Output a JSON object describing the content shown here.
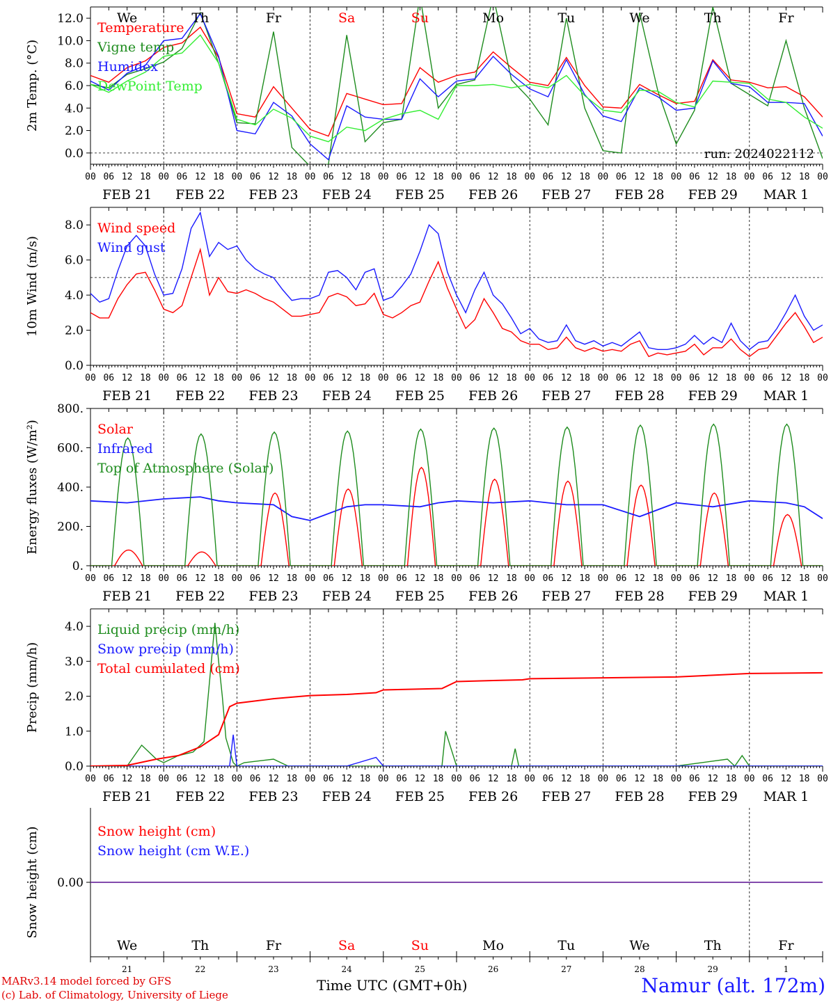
{
  "days": [
    "We",
    "Th",
    "Fr",
    "Sa",
    "Su",
    "Mo",
    "Tu",
    "We",
    "Th",
    "Fr"
  ],
  "weekend_days": [
    "Sa",
    "Su"
  ],
  "dates": [
    "FEB 21",
    "FEB 22",
    "FEB 23",
    "FEB 24",
    "FEB 25",
    "FEB 26",
    "FEB 27",
    "FEB 28",
    "FEB 29",
    "MAR  1"
  ],
  "day_numbers": [
    "21",
    "22",
    "23",
    "24",
    "25",
    "26",
    "27",
    "28",
    "29",
    "1"
  ],
  "hour_labels": [
    "00",
    "06",
    "12",
    "18"
  ],
  "end_hour_label": "00",
  "run_label": "run: 2024022112",
  "footer": {
    "model_line1": "MARv3.14 model forced by GFS",
    "model_line2": "(c) Lab. of Climatology, University of Liege",
    "time_axis_label": "Time UTC (GMT+0h)",
    "location": "Namur (alt. 172m)"
  },
  "colors": {
    "red": "#ff0000",
    "green": "#1e8c1e",
    "blue": "#1a1aff",
    "lightgreen": "#33ee33",
    "purple": "#7030a0"
  },
  "chart_data": [
    {
      "type": "line",
      "ylabel": "2m Temp. (°C)",
      "ylim": [
        -1.0,
        13.0
      ],
      "yticks": [
        "0.0",
        "2.0",
        "4.0",
        "6.0",
        "8.0",
        "10.0",
        "12.0"
      ],
      "yticks_values": [
        0,
        2,
        4,
        6,
        8,
        10,
        12
      ],
      "x_unit": "days since FEB 21 00 UTC",
      "legend_placement": "left",
      "series": [
        {
          "name": "Temperature",
          "color": "red",
          "x": [
            0,
            0.25,
            0.5,
            0.75,
            1,
            1.25,
            1.5,
            1.75,
            2,
            2.25,
            2.5,
            2.75,
            3,
            3.25,
            3.5,
            3.75,
            4,
            4.25,
            4.5,
            4.75,
            5,
            5.25,
            5.5,
            5.75,
            6,
            6.25,
            6.5,
            6.75,
            7,
            7.25,
            7.5,
            7.75,
            8,
            8.25,
            8.5,
            8.75,
            9,
            9.25,
            9.5,
            9.75,
            10
          ],
          "values": [
            6.9,
            6.3,
            7.6,
            8.2,
            9.4,
            9.8,
            11.2,
            8.5,
            3.5,
            3.2,
            5.9,
            4.0,
            2.1,
            1.5,
            5.3,
            4.8,
            4.3,
            4.4,
            7.6,
            6.3,
            6.9,
            7.2,
            9.0,
            7.6,
            6.3,
            6.0,
            8.5,
            6.0,
            4.1,
            4.0,
            6.1,
            5.2,
            4.4,
            4.6,
            8.3,
            6.5,
            6.3,
            5.8,
            5.9,
            5.0,
            3.2
          ]
        },
        {
          "name": "Vigne temp",
          "color": "green",
          "x": [
            0,
            0.25,
            0.5,
            0.75,
            1,
            1.25,
            1.5,
            1.75,
            2,
            2.25,
            2.5,
            2.75,
            3,
            3.25,
            3.5,
            3.75,
            4,
            4.25,
            4.5,
            4.75,
            5,
            5.25,
            5.5,
            5.75,
            6,
            6.25,
            6.5,
            6.75,
            7,
            7.25,
            7.5,
            7.75,
            8,
            8.25,
            8.5,
            8.75,
            9,
            9.25,
            9.5,
            9.75,
            10
          ],
          "values": [
            6.1,
            5.8,
            7.0,
            7.5,
            8.1,
            9.3,
            12.5,
            8.0,
            2.7,
            2.6,
            10.8,
            0.5,
            -1.2,
            -1.0,
            10.5,
            1.0,
            2.7,
            3.0,
            14.0,
            4.0,
            6.1,
            6.5,
            14.0,
            6.5,
            4.8,
            2.5,
            12.0,
            4.0,
            0.2,
            0.0,
            12.5,
            5.5,
            0.8,
            3.8,
            13.0,
            6.2,
            5.2,
            4.2,
            10.0,
            4.0,
            -0.5
          ]
        },
        {
          "name": "Humidex",
          "color": "blue",
          "x": [
            0,
            0.25,
            0.5,
            0.75,
            1,
            1.25,
            1.5,
            1.75,
            2,
            2.25,
            2.5,
            2.75,
            3,
            3.25,
            3.5,
            3.75,
            4,
            4.25,
            4.5,
            4.75,
            5,
            5.25,
            5.5,
            5.75,
            6,
            6.25,
            6.5,
            6.75,
            7,
            7.25,
            7.5,
            7.75,
            8,
            8.25,
            8.5,
            8.75,
            9,
            9.25,
            9.5,
            9.75,
            10
          ],
          "values": [
            6.4,
            5.6,
            7.1,
            7.8,
            10.0,
            10.2,
            12.4,
            8.6,
            2.0,
            1.7,
            4.5,
            3.3,
            0.8,
            -0.6,
            4.2,
            3.2,
            3.0,
            3.0,
            6.6,
            5.0,
            6.4,
            6.6,
            8.6,
            7.0,
            5.7,
            5.0,
            8.3,
            5.2,
            3.3,
            2.8,
            5.8,
            5.0,
            3.8,
            4.0,
            8.2,
            6.2,
            5.9,
            4.5,
            4.5,
            4.4,
            1.5
          ]
        },
        {
          "name": "DewPoint Temp",
          "color": "lightgreen",
          "x": [
            0,
            0.25,
            0.5,
            0.75,
            1,
            1.25,
            1.5,
            1.75,
            2,
            2.25,
            2.5,
            2.75,
            3,
            3.25,
            3.5,
            3.75,
            4,
            4.25,
            4.5,
            4.75,
            5,
            5.25,
            5.5,
            5.75,
            6,
            6.25,
            6.5,
            6.75,
            7,
            7.25,
            7.5,
            7.75,
            8,
            8.25,
            8.5,
            8.75,
            9,
            9.25,
            9.5,
            9.75,
            10
          ],
          "values": [
            6.1,
            5.4,
            6.4,
            7.2,
            8.6,
            8.9,
            10.5,
            8.0,
            3.0,
            2.5,
            3.9,
            3.1,
            1.5,
            1.0,
            2.3,
            2.0,
            3.0,
            3.5,
            3.8,
            3.0,
            6.0,
            6.0,
            6.1,
            5.8,
            6.1,
            5.8,
            6.9,
            5.1,
            3.8,
            3.6,
            5.6,
            5.5,
            4.5,
            4.1,
            6.4,
            6.3,
            6.2,
            4.8,
            4.5,
            3.2,
            2.2
          ]
        }
      ]
    },
    {
      "type": "line",
      "ylabel": "10m Wind (m/s)",
      "ylim": [
        0,
        9.0
      ],
      "yticks": [
        "0.0",
        "2.0",
        "4.0",
        "6.0",
        "8.0"
      ],
      "yticks_values": [
        0,
        2,
        4,
        6,
        8
      ],
      "reference_line": 5.0,
      "x_unit": "days since FEB 21 00 UTC",
      "legend_placement": "left",
      "series": [
        {
          "name": "Wind speed",
          "color": "red",
          "x": [
            0,
            0.125,
            0.25,
            0.375,
            0.5,
            0.625,
            0.75,
            0.875,
            1,
            1.125,
            1.25,
            1.375,
            1.5,
            1.625,
            1.75,
            1.875,
            2,
            2.125,
            2.25,
            2.375,
            2.5,
            2.625,
            2.75,
            2.875,
            3,
            3.125,
            3.25,
            3.375,
            3.5,
            3.625,
            3.75,
            3.875,
            4,
            4.125,
            4.25,
            4.375,
            4.5,
            4.625,
            4.75,
            4.875,
            5,
            5.125,
            5.25,
            5.375,
            5.5,
            5.625,
            5.75,
            5.875,
            6,
            6.125,
            6.25,
            6.375,
            6.5,
            6.625,
            6.75,
            6.875,
            7,
            7.125,
            7.25,
            7.375,
            7.5,
            7.625,
            7.75,
            7.875,
            8,
            8.125,
            8.25,
            8.375,
            8.5,
            8.625,
            8.75,
            8.875,
            9,
            9.125,
            9.25,
            9.375,
            9.5,
            9.625,
            9.75,
            9.875,
            10
          ],
          "values": [
            3.0,
            2.7,
            2.7,
            3.8,
            4.6,
            5.2,
            5.3,
            4.3,
            3.2,
            3.0,
            3.4,
            5.0,
            6.6,
            4.0,
            5.0,
            4.2,
            4.1,
            4.3,
            4.1,
            3.8,
            3.6,
            3.2,
            2.8,
            2.8,
            2.9,
            3.0,
            3.9,
            4.1,
            3.9,
            3.4,
            3.5,
            4.1,
            2.9,
            2.7,
            3.0,
            3.4,
            3.6,
            4.8,
            5.9,
            4.4,
            3.2,
            2.1,
            2.6,
            3.8,
            3.0,
            2.1,
            1.9,
            1.4,
            1.2,
            1.2,
            0.9,
            1.0,
            1.6,
            1.0,
            0.8,
            1.0,
            0.8,
            0.9,
            0.8,
            1.2,
            1.4,
            0.5,
            0.7,
            0.6,
            0.7,
            0.8,
            1.2,
            0.6,
            1.0,
            1.0,
            1.5,
            0.9,
            0.5,
            0.9,
            1.0,
            1.7,
            2.4,
            3.0,
            2.2,
            1.3,
            1.6
          ]
        },
        {
          "name": "Wind gust",
          "color": "blue",
          "x": [
            0,
            0.125,
            0.25,
            0.375,
            0.5,
            0.625,
            0.75,
            0.875,
            1,
            1.125,
            1.25,
            1.375,
            1.5,
            1.625,
            1.75,
            1.875,
            2,
            2.125,
            2.25,
            2.375,
            2.5,
            2.625,
            2.75,
            2.875,
            3,
            3.125,
            3.25,
            3.375,
            3.5,
            3.625,
            3.75,
            3.875,
            4,
            4.125,
            4.25,
            4.375,
            4.5,
            4.625,
            4.75,
            4.875,
            5,
            5.125,
            5.25,
            5.375,
            5.5,
            5.625,
            5.75,
            5.875,
            6,
            6.125,
            6.25,
            6.375,
            6.5,
            6.625,
            6.75,
            6.875,
            7,
            7.125,
            7.25,
            7.375,
            7.5,
            7.625,
            7.75,
            7.875,
            8,
            8.125,
            8.25,
            8.375,
            8.5,
            8.625,
            8.75,
            8.875,
            9,
            9.125,
            9.25,
            9.375,
            9.5,
            9.625,
            9.75,
            9.875,
            10
          ],
          "values": [
            4.1,
            3.6,
            3.8,
            5.4,
            6.8,
            7.4,
            6.8,
            5.2,
            4.0,
            4.1,
            5.5,
            7.8,
            8.7,
            6.2,
            7.0,
            6.6,
            6.8,
            6.0,
            5.5,
            5.2,
            5.0,
            4.3,
            3.7,
            3.8,
            3.8,
            4.0,
            5.3,
            5.4,
            5.0,
            4.3,
            5.3,
            5.5,
            3.7,
            3.9,
            4.5,
            5.2,
            6.5,
            8.0,
            7.5,
            5.3,
            4.0,
            3.0,
            4.3,
            5.3,
            4.0,
            3.5,
            2.7,
            1.8,
            2.1,
            1.5,
            1.3,
            1.4,
            2.3,
            1.4,
            1.2,
            1.4,
            1.1,
            1.3,
            1.1,
            1.5,
            1.9,
            1.0,
            0.9,
            0.9,
            1.0,
            1.2,
            1.7,
            1.2,
            1.6,
            1.3,
            2.4,
            1.4,
            0.9,
            1.3,
            1.4,
            2.1,
            3.0,
            4.0,
            2.8,
            2.0,
            2.3
          ]
        }
      ]
    },
    {
      "type": "line",
      "ylabel": "Energy fluxes (W/m²)",
      "ylim": [
        0,
        800
      ],
      "yticks": [
        "0.",
        "200.",
        "400.",
        "600.",
        "800."
      ],
      "yticks_values": [
        0,
        200,
        400,
        600,
        800
      ],
      "x_unit": "days since FEB 21 00 UTC",
      "legend_placement": "left",
      "series": [
        {
          "name": "Solar",
          "color": "red",
          "daily_peak": [
            80,
            70,
            370,
            390,
            500,
            440,
            430,
            410,
            370,
            260
          ]
        },
        {
          "name": "Infrared",
          "color": "blue",
          "x": [
            0,
            0.5,
            1,
            1.5,
            1.75,
            2,
            2.5,
            2.75,
            3,
            3.5,
            3.75,
            4,
            4.5,
            4.75,
            5,
            5.5,
            6,
            6.5,
            7,
            7.5,
            8,
            8.5,
            9,
            9.5,
            9.75,
            10
          ],
          "values": [
            330,
            320,
            340,
            350,
            330,
            320,
            310,
            250,
            230,
            300,
            310,
            310,
            300,
            320,
            330,
            320,
            330,
            310,
            310,
            250,
            320,
            300,
            330,
            320,
            300,
            240
          ]
        },
        {
          "name": "Top of Atmosphere (Solar)",
          "color": "green",
          "daily_peak": [
            650,
            670,
            680,
            685,
            695,
            700,
            705,
            715,
            720,
            720
          ]
        }
      ]
    },
    {
      "type": "line",
      "ylabel": "Precip (mm/h)",
      "ylim": [
        0,
        4.5
      ],
      "yticks": [
        "0.0",
        "1.0",
        "2.0",
        "3.0",
        "4.0"
      ],
      "yticks_values": [
        0,
        1,
        2,
        3,
        4
      ],
      "x_unit": "days since FEB 21 00 UTC",
      "legend_placement": "left",
      "series": [
        {
          "name": "Liquid precip (mm/h)",
          "color": "green",
          "x": [
            0,
            0.5,
            0.7,
            0.9,
            1,
            1.2,
            1.4,
            1.55,
            1.7,
            1.75,
            1.8,
            1.85,
            1.95,
            2,
            2.1,
            2.5,
            2.7,
            2.8,
            3,
            4,
            4.8,
            4.85,
            5,
            5.75,
            5.8,
            5.85,
            6,
            8,
            8.7,
            8.8,
            8.9,
            9.0,
            9.5,
            10
          ],
          "values": [
            0,
            0,
            0.6,
            0.2,
            0.1,
            0.3,
            0.4,
            0.7,
            4.1,
            3.0,
            2.0,
            0.8,
            0.1,
            0,
            0.1,
            0.2,
            0,
            0,
            0,
            0,
            0,
            1.0,
            0,
            0,
            0.5,
            0,
            0,
            0,
            0.2,
            0,
            0.3,
            0,
            0,
            0
          ]
        },
        {
          "name": "Snow precip (mm/h)",
          "color": "blue",
          "x": [
            0,
            1.9,
            1.95,
            2.0,
            3.5,
            3.9,
            4.0,
            4.5,
            10
          ],
          "values": [
            0,
            0,
            0.9,
            0,
            0,
            0.25,
            0,
            0,
            0
          ]
        },
        {
          "name": "Total cumulated (cm)",
          "color": "red",
          "x": [
            0,
            0.5,
            0.9,
            1.2,
            1.5,
            1.75,
            1.9,
            2.0,
            2.5,
            3.0,
            3.5,
            3.9,
            4.0,
            4.8,
            5.0,
            5.5,
            5.9,
            6.0,
            8.0,
            8.5,
            9.0,
            10.0
          ],
          "values": [
            0,
            0.02,
            0.2,
            0.3,
            0.55,
            0.9,
            1.7,
            1.8,
            1.93,
            2.02,
            2.05,
            2.1,
            2.18,
            2.22,
            2.42,
            2.45,
            2.47,
            2.5,
            2.55,
            2.6,
            2.65,
            2.67
          ]
        }
      ]
    },
    {
      "type": "line",
      "ylabel": "Snow height (cm)",
      "ylim": [
        -1,
        1
      ],
      "yticks": [
        "0.00"
      ],
      "yticks_values": [
        0
      ],
      "x_unit": "days since FEB 21 00 UTC",
      "legend_placement": "left",
      "series": [
        {
          "name": "Snow height (cm)",
          "color": "red",
          "x": [
            0,
            10
          ],
          "values": [
            0,
            0
          ]
        },
        {
          "name": "Snow height (cm W.E.)",
          "color": "blue",
          "x": [
            0,
            10
          ],
          "values": [
            0,
            0
          ]
        }
      ]
    }
  ]
}
